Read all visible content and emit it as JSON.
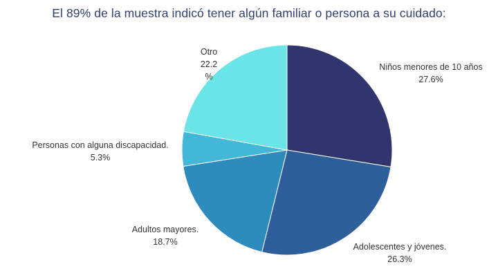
{
  "chart_data": {
    "type": "pie",
    "title": "El 89% de la muestra indicó tener algún familiar o persona a su cuidado:",
    "slices": [
      {
        "label": "Niños menores de 10 años",
        "value": 27.6,
        "value_label": "27.6%",
        "color": "#30356e"
      },
      {
        "label": "Adolescentes y jóvenes.",
        "value": 26.3,
        "value_label": "26.3%",
        "color": "#2f5f9b"
      },
      {
        "label": "Adultos mayores.",
        "value": 18.7,
        "value_label": "18.7%",
        "color": "#2d8bbd"
      },
      {
        "label": "Personas con alguna discapacidad.",
        "value": 5.3,
        "value_label": "5.3%",
        "color": "#43b7d7"
      },
      {
        "label": "Otro",
        "value": 22.2,
        "value_label": [
          "22.2",
          "%"
        ],
        "color": "#6ae4e8"
      }
    ],
    "start": "top",
    "direction": "clockwise",
    "legend": "none"
  }
}
